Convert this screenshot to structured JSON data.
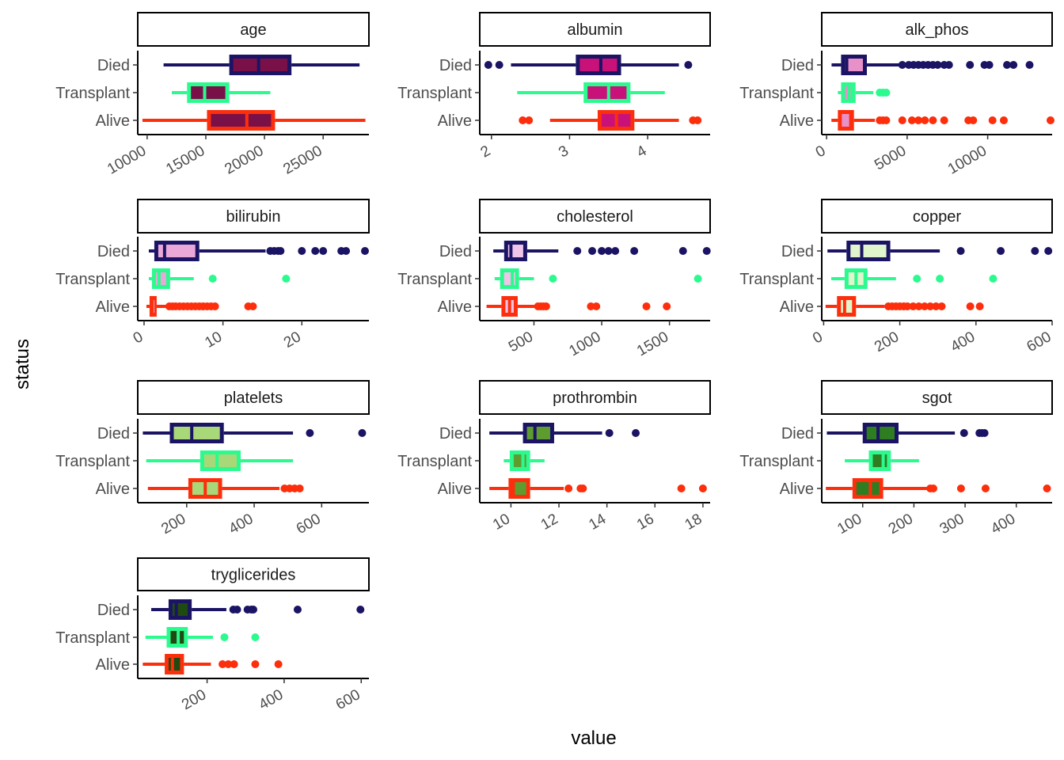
{
  "chart_data": {
    "type": "boxplot",
    "xlabel": "value",
    "ylabel": "status",
    "categories": [
      "Died",
      "Transplant",
      "Alive"
    ],
    "colors": {
      "Died": "#1b1464",
      "Transplant": "#2bfa8e",
      "Alive": "#fc2e0c"
    },
    "panels": [
      {
        "name": "age",
        "xlim": [
          9200,
          28900
        ],
        "ticks": [
          10000,
          15000,
          20000,
          25000
        ],
        "fill": "#7a1048",
        "box_fill": {
          "Died": "#7a1048",
          "Transplant": "#7a1048",
          "Alive": "#7a1048"
        },
        "median_color": "#1b1464",
        "boxes": [
          {
            "group": "Died",
            "whisker_low": 11400,
            "q1": 17000,
            "median": 19500,
            "q3": 22300,
            "whisker_high": 28100,
            "outliers": []
          },
          {
            "group": "Transplant",
            "whisker_low": 12100,
            "q1": 13400,
            "median": 14900,
            "q3": 17000,
            "whisker_high": 20500,
            "outliers": []
          },
          {
            "group": "Alive",
            "whisker_low": 9600,
            "q1": 15100,
            "median": 18500,
            "q3": 20900,
            "whisker_high": 28600,
            "outliers": []
          }
        ]
      },
      {
        "name": "albumin",
        "xlim": [
          1.85,
          4.8
        ],
        "ticks": [
          2,
          3,
          4
        ],
        "fill": "#c8127a",
        "box_fill": {
          "Died": "#c8127a",
          "Transplant": "#c8127a",
          "Alive": "#c8127a"
        },
        "median_color": "#1b1464",
        "boxes": [
          {
            "group": "Died",
            "whisker_low": 2.25,
            "q1": 3.08,
            "median": 3.4,
            "q3": 3.66,
            "whisker_high": 4.4,
            "outliers": [
              1.96,
              2.1,
              4.52
            ]
          },
          {
            "group": "Transplant",
            "whisker_low": 2.33,
            "q1": 3.18,
            "median": 3.5,
            "q3": 3.78,
            "whisker_high": 4.22,
            "outliers": []
          },
          {
            "group": "Alive",
            "whisker_low": 2.75,
            "q1": 3.36,
            "median": 3.6,
            "q3": 3.83,
            "whisker_high": 4.4,
            "outliers": [
              2.4,
              2.48,
              4.58,
              4.64
            ]
          }
        ]
      },
      {
        "name": "alk_phos",
        "xlim": [
          -300,
          14000
        ],
        "ticks": [
          0,
          5000,
          10000
        ],
        "fill": "#e890c8",
        "box_fill": {
          "Died": "#e890c8",
          "Transplant": "#e890c8",
          "Alive": "#e890c8"
        },
        "median_color": "#1b1464",
        "boxes": [
          {
            "group": "Died",
            "whisker_low": 310,
            "q1": 900,
            "median": 1250,
            "q3": 2500,
            "whisker_high": 4500,
            "outliers": [
              4700,
              5100,
              5400,
              5700,
              6000,
              6300,
              6600,
              6900,
              7300,
              7600,
              8900,
              9800,
              10100,
              11200,
              11600,
              12600
            ]
          },
          {
            "group": "Transplant",
            "whisker_low": 700,
            "q1": 900,
            "median": 1400,
            "q3": 1800,
            "whisker_high": 2900,
            "outliers": [
              3300,
              3500,
              3700
            ]
          },
          {
            "group": "Alive",
            "whisker_low": 300,
            "q1": 700,
            "median": 1500,
            "q3": 1700,
            "whisker_high": 3000,
            "outliers": [
              3300,
              3500,
              3700,
              4700,
              5300,
              5700,
              6100,
              6600,
              7300,
              8800,
              9100,
              10300,
              11000,
              13900
            ]
          }
        ]
      },
      {
        "name": "bilirubin",
        "xlim": [
          -0.8,
          28.5
        ],
        "ticks": [
          0,
          10,
          20
        ],
        "fill": "#eaa8d8",
        "box_fill": {
          "Died": "#eaa8d8",
          "Transplant": "#eaa8d8",
          "Alive": "#eaa8d8"
        },
        "median_color": "#1b1464",
        "boxes": [
          {
            "group": "Died",
            "whisker_low": 0.6,
            "q1": 1.3,
            "median": 2.6,
            "q3": 7.0,
            "whisker_high": 15.4,
            "outliers": [
              16.0,
              16.5,
              17.0,
              17.3,
              20.0,
              21.7,
              22.7,
              25.0,
              25.6,
              28.0
            ]
          },
          {
            "group": "Transplant",
            "whisker_low": 0.6,
            "q1": 1.0,
            "median": 1.9,
            "q3": 3.3,
            "whisker_high": 6.3,
            "outliers": [
              8.7,
              18.0
            ]
          },
          {
            "group": "Alive",
            "whisker_low": 0.3,
            "q1": 0.7,
            "median": 1.0,
            "q3": 1.6,
            "whisker_high": 2.8,
            "outliers": [
              3.2,
              3.6,
              4.0,
              4.5,
              5.0,
              5.5,
              6.0,
              6.5,
              7.0,
              7.5,
              8.0,
              8.5,
              9.0,
              13.2,
              13.8
            ]
          }
        ]
      },
      {
        "name": "cholesterol",
        "xlim": [
          100,
          1800
        ],
        "ticks": [
          500,
          1000,
          1500
        ],
        "fill": "#f0c4e8",
        "box_fill": {
          "Died": "#f0c4e8",
          "Transplant": "#f0c4e8",
          "Alive": "#f0c4e8"
        },
        "median_color": "#1b1464",
        "boxes": [
          {
            "group": "Died",
            "whisker_low": 200,
            "q1": 280,
            "median": 330,
            "q3": 450,
            "whisker_high": 680,
            "outliers": [
              820,
              930,
              1000,
              1050,
              1100,
              1240,
              1600,
              1775
            ]
          },
          {
            "group": "Transplant",
            "whisker_low": 210,
            "q1": 250,
            "median": 340,
            "q3": 390,
            "whisker_high": 500,
            "outliers": [
              640,
              1710
            ]
          },
          {
            "group": "Alive",
            "whisker_low": 150,
            "q1": 260,
            "median": 320,
            "q3": 380,
            "whisker_high": 520,
            "outliers": [
              530,
              550,
              570,
              590,
              920,
              960,
              1330,
              1480
            ]
          }
        ]
      },
      {
        "name": "copper",
        "xlim": [
          -5,
          600
        ],
        "ticks": [
          0,
          200,
          400,
          600
        ],
        "fill": "#e0f5cc",
        "box_fill": {
          "Died": "#e0f5cc",
          "Transplant": "#e0f5cc",
          "Alive": "#e0f5cc"
        },
        "median_color": "#2bfa8e",
        "boxes": [
          {
            "group": "Died",
            "whisker_low": 10,
            "q1": 60,
            "median": 100,
            "q3": 175,
            "whisker_high": 305,
            "outliers": [
              360,
              465,
              555,
              590
            ]
          },
          {
            "group": "Transplant",
            "whisker_low": 20,
            "q1": 55,
            "median": 85,
            "q3": 115,
            "whisker_high": 190,
            "outliers": [
              245,
              305,
              445
            ]
          },
          {
            "group": "Alive",
            "whisker_low": 5,
            "q1": 35,
            "median": 55,
            "q3": 85,
            "whisker_high": 160,
            "outliers": [
              170,
              180,
              190,
              200,
              210,
              220,
              235,
              250,
              265,
              280,
              295,
              310,
              385,
              410
            ]
          }
        ]
      },
      {
        "name": "platelets",
        "xlim": [
          55,
          740
        ],
        "ticks": [
          200,
          400,
          600
        ],
        "fill": "#a8d878",
        "box_fill": {
          "Died": "#a8d878",
          "Transplant": "#a8d878",
          "Alive": "#a8d878"
        },
        "median_color": "#1b1464",
        "boxes": [
          {
            "group": "Died",
            "whisker_low": 70,
            "q1": 150,
            "median": 215,
            "q3": 310,
            "whisker_high": 515,
            "outliers": [
              565,
              720
            ]
          },
          {
            "group": "Transplant",
            "whisker_low": 80,
            "q1": 240,
            "median": 290,
            "q3": 360,
            "whisker_high": 515,
            "outliers": []
          },
          {
            "group": "Alive",
            "whisker_low": 85,
            "q1": 205,
            "median": 255,
            "q3": 305,
            "whisker_high": 475,
            "outliers": [
              490,
              505,
              520,
              535
            ]
          }
        ]
      },
      {
        "name": "prothrombin",
        "xlim": [
          8.7,
          18.3
        ],
        "ticks": [
          10,
          12,
          14,
          16,
          18
        ],
        "fill": "#5e9c30",
        "box_fill": {
          "Died": "#5e9c30",
          "Transplant": "#5e9c30",
          "Alive": "#5e9c30"
        },
        "median_color": "#1b1464",
        "boxes": [
          {
            "group": "Died",
            "whisker_low": 9.1,
            "q1": 10.5,
            "median": 11.0,
            "q3": 11.8,
            "whisker_high": 13.8,
            "outliers": [
              14.1,
              15.2
            ]
          },
          {
            "group": "Transplant",
            "whisker_low": 9.7,
            "q1": 9.95,
            "median": 10.5,
            "q3": 10.8,
            "whisker_high": 11.4,
            "outliers": []
          },
          {
            "group": "Alive",
            "whisker_low": 9.1,
            "q1": 9.9,
            "median": 10.1,
            "q3": 10.8,
            "whisker_high": 12.2,
            "outliers": [
              12.4,
              12.9,
              13.0,
              17.1,
              18.0
            ]
          }
        ]
      },
      {
        "name": "sgot",
        "xlim": [
          20,
          470
        ],
        "ticks": [
          100,
          200,
          300,
          400
        ],
        "fill": "#2e7d20",
        "box_fill": {
          "Died": "#2e7d20",
          "Transplant": "#2e7d20",
          "Alive": "#2e7d20"
        },
        "median_color": "#2bfa8e",
        "boxes": [
          {
            "group": "Died",
            "whisker_low": 30,
            "q1": 100,
            "median": 130,
            "q3": 170,
            "whisker_high": 280,
            "outliers": [
              298,
              328,
              333,
              338
            ]
          },
          {
            "group": "Transplant",
            "whisker_low": 65,
            "q1": 112,
            "median": 140,
            "q3": 155,
            "whisker_high": 210,
            "outliers": []
          },
          {
            "group": "Alive",
            "whisker_low": 28,
            "q1": 80,
            "median": 115,
            "q3": 140,
            "whisker_high": 225,
            "outliers": [
              232,
              238,
              292,
              340,
              460
            ]
          }
        ]
      },
      {
        "name": "tryglicerides",
        "xlim": [
          20,
          620
        ],
        "ticks": [
          200,
          400,
          600
        ],
        "fill": "#1f4a10",
        "box_fill": {
          "Died": "#1f4a10",
          "Transplant": "#1f4a10",
          "Alive": "#1f4a10"
        },
        "median_color": "#2bfa8e",
        "boxes": [
          {
            "group": "Died",
            "whisker_low": 55,
            "q1": 100,
            "median": 120,
            "q3": 160,
            "whisker_high": 250,
            "outliers": [
              268,
              278,
              305,
              315,
              320,
              435,
              598
            ]
          },
          {
            "group": "Transplant",
            "whisker_low": 40,
            "q1": 95,
            "median": 125,
            "q3": 150,
            "whisker_high": 215,
            "outliers": [
              245,
              325
            ]
          },
          {
            "group": "Alive",
            "whisker_low": 33,
            "q1": 90,
            "median": 110,
            "q3": 140,
            "whisker_high": 210,
            "outliers": [
              240,
              255,
              270,
              325,
              385
            ]
          }
        ]
      }
    ]
  }
}
